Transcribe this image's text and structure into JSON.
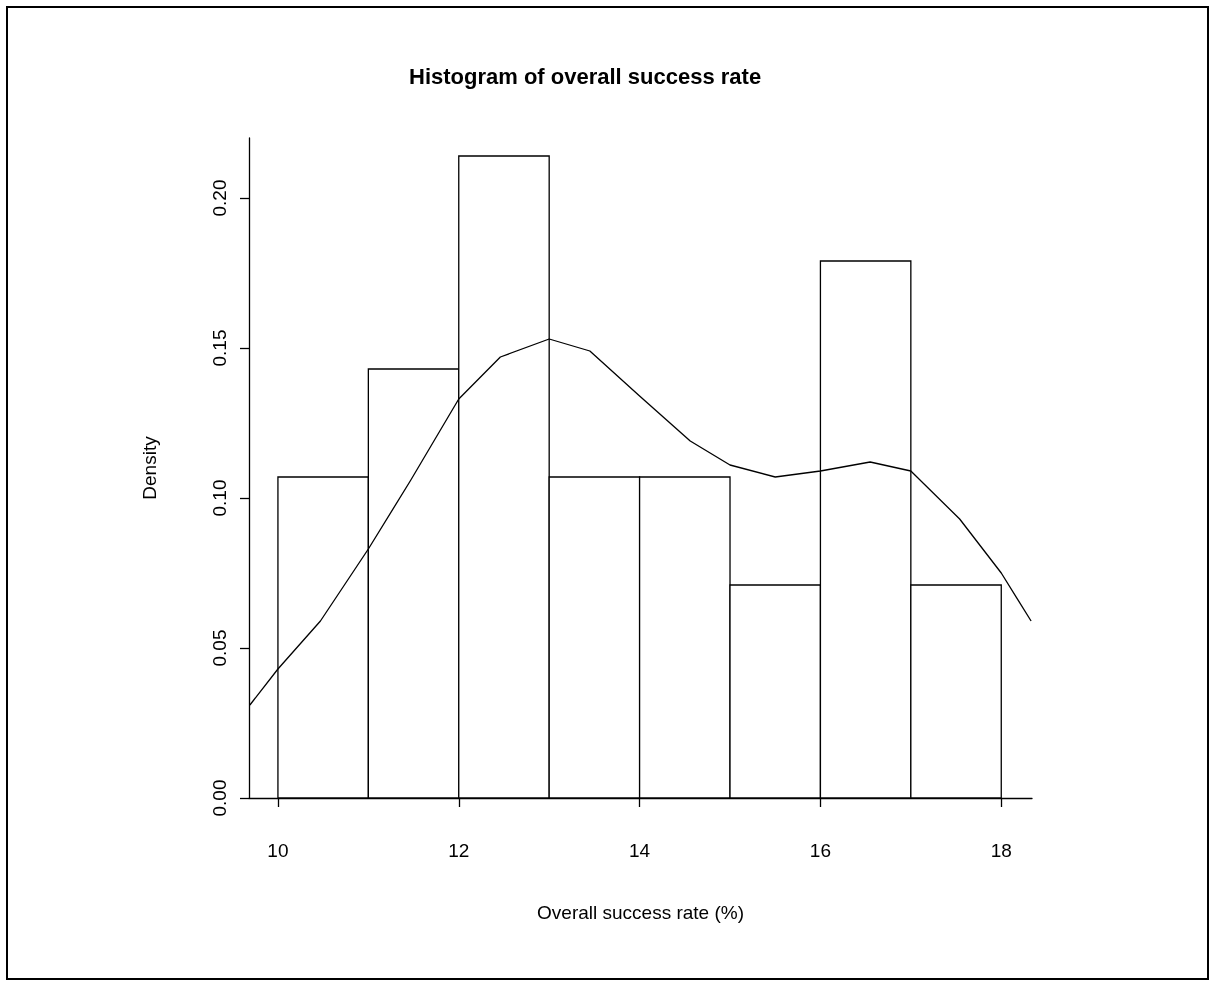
{
  "chart_data": {
    "type": "histogram",
    "title": "Histogram of overall success rate",
    "xlabel": "Overall success rate (%)",
    "ylabel": "Density",
    "bins": [
      10,
      11,
      12,
      13,
      14,
      15,
      16,
      17,
      18
    ],
    "values": [
      0.107,
      0.143,
      0.214,
      0.107,
      0.107,
      0.071,
      0.179,
      0.071
    ],
    "color": "#ffffff",
    "series": [
      {
        "type": "line",
        "color": "#000000",
        "x": [
          9.69,
          10,
          10.47,
          11,
          11.47,
          12,
          12.46,
          13,
          13.45,
          14,
          14.56,
          15,
          15.5,
          16,
          16.55,
          17,
          17.54,
          18,
          18.33
        ],
        "values": [
          0.031,
          0.043,
          0.059,
          0.083,
          0.106,
          0.133,
          0.147,
          0.153,
          0.149,
          0.134,
          0.119,
          0.111,
          0.107,
          0.109,
          0.112,
          0.109,
          0.093,
          0.075,
          0.059
        ]
      }
    ],
    "xlim": [
      9.68,
      18.34
    ],
    "xticks": [
      10,
      12,
      14,
      16,
      18
    ],
    "ylim": [
      0,
      0.22
    ],
    "yticks": [
      {
        "value": 0,
        "label": "0.00"
      },
      {
        "value": 0.05,
        "label": "0.05"
      },
      {
        "value": 0.1,
        "label": "0.10"
      },
      {
        "value": 0.15,
        "label": "0.15"
      },
      {
        "value": 0.2,
        "label": "0.20"
      }
    ],
    "grid": false,
    "marker": "none",
    "line_style": "solid"
  }
}
